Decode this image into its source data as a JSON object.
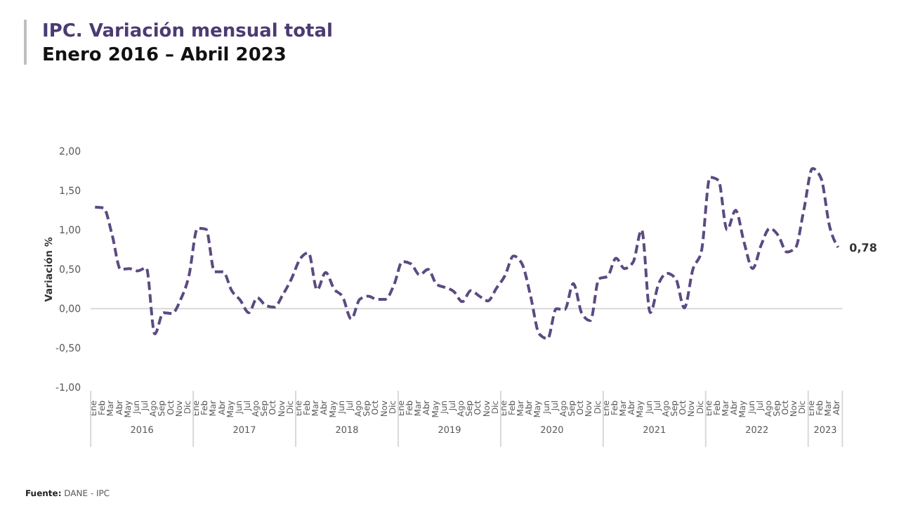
{
  "chart_data": {
    "type": "line",
    "title": "IPC. Variación mensual total",
    "subtitle": "Enero 2016 – Abril 2023",
    "ylabel": "Variación %",
    "categories": [
      "Ene",
      "Feb",
      "Mar",
      "Abr",
      "May",
      "Jun",
      "Jul",
      "Ago",
      "Sep",
      "Oct",
      "Nov",
      "Dic",
      "Ene",
      "Feb",
      "Mar",
      "Abr",
      "May",
      "Jun",
      "Jul",
      "Ago",
      "Sep",
      "Oct",
      "Nov",
      "Dic",
      "Ene",
      "Feb",
      "Mar",
      "Abr",
      "May",
      "Jun",
      "Jul",
      "Ago",
      "Sep",
      "Oct",
      "Nov",
      "Dic",
      "Ene",
      "Feb",
      "Mar",
      "Abr",
      "May",
      "Jun",
      "Jul",
      "Ago",
      "Sep",
      "Oct",
      "Nov",
      "Dic",
      "Ene",
      "Feb",
      "Mar",
      "Abr",
      "May",
      "Jun",
      "Jul",
      "Ago",
      "Sep",
      "Oct",
      "Nov",
      "Dic",
      "Ene",
      "Feb",
      "Mar",
      "Abr",
      "May",
      "Jun",
      "Jul",
      "Ago",
      "Sep",
      "Oct",
      "Nov",
      "Dic",
      "Ene",
      "Feb",
      "Mar",
      "Abr",
      "May",
      "Jun",
      "Jul",
      "Ago",
      "Sep",
      "Oct",
      "Nov",
      "Dic",
      "Ene",
      "Feb",
      "Mar",
      "Abr"
    ],
    "series": [
      {
        "color": "#5b4a82",
        "values": [
          1.29,
          1.28,
          0.94,
          0.5,
          0.51,
          0.48,
          0.52,
          -0.32,
          -0.05,
          -0.06,
          0.11,
          0.42,
          1.02,
          1.01,
          0.47,
          0.47,
          0.23,
          0.11,
          -0.05,
          0.14,
          0.04,
          0.02,
          0.18,
          0.38,
          0.63,
          0.71,
          0.24,
          0.46,
          0.25,
          0.15,
          -0.13,
          0.12,
          0.16,
          0.12,
          0.12,
          0.3,
          0.6,
          0.57,
          0.43,
          0.5,
          0.31,
          0.27,
          0.22,
          0.09,
          0.23,
          0.16,
          0.1,
          0.26,
          0.42,
          0.67,
          0.57,
          0.16,
          -0.32,
          -0.38,
          0.0,
          -0.01,
          0.32,
          -0.06,
          -0.15,
          0.38,
          0.41,
          0.64,
          0.51,
          0.59,
          1.0,
          -0.05,
          0.32,
          0.45,
          0.38,
          0.01,
          0.5,
          0.73,
          1.67,
          1.63,
          1.0,
          1.25,
          0.84,
          0.51,
          0.81,
          1.02,
          0.93,
          0.72,
          0.77,
          1.26,
          1.78,
          1.66,
          1.05,
          0.78
        ],
        "value_labels": [
          null,
          null,
          null,
          null,
          null,
          null,
          null,
          null,
          null,
          null,
          null,
          null,
          null,
          null,
          null,
          null,
          null,
          null,
          null,
          null,
          null,
          null,
          null,
          null,
          null,
          null,
          null,
          null,
          null,
          null,
          null,
          null,
          null,
          null,
          null,
          null,
          null,
          null,
          null,
          null,
          null,
          null,
          null,
          null,
          null,
          null,
          null,
          null,
          null,
          null,
          null,
          null,
          null,
          null,
          null,
          null,
          null,
          null,
          null,
          null,
          null,
          null,
          null,
          null,
          null,
          null,
          null,
          null,
          null,
          null,
          null,
          null,
          null,
          null,
          null,
          null,
          null,
          null,
          null,
          null,
          null,
          null,
          null,
          null,
          null,
          null,
          null,
          "0,78"
        ]
      }
    ],
    "ylim": [
      -1,
      2
    ],
    "yticks": [
      {
        "value": -1,
        "label": "-1,00"
      },
      {
        "value": -0.5,
        "label": "-0,50"
      },
      {
        "value": 0,
        "label": "0,00"
      },
      {
        "value": 0.5,
        "label": "0,50"
      },
      {
        "value": 1,
        "label": "1,00"
      },
      {
        "value": 1.5,
        "label": "1,50"
      },
      {
        "value": 2,
        "label": "2,00"
      }
    ],
    "ref_lines": [
      {
        "axis": "y",
        "value": 0,
        "color": "#d9d9d9"
      }
    ],
    "grid": false,
    "marker": "none",
    "line_style": "dashed",
    "annotations": [
      "2016",
      "2017",
      "2018",
      "2019",
      "2020",
      "2021",
      "2022",
      "2023",
      "Fuente: DANE - IPC"
    ]
  }
}
